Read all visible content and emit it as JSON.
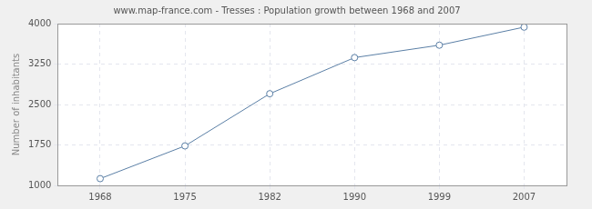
{
  "chart_data": {
    "type": "line",
    "title": "www.map-france.com - Tresses : Population growth between 1968 and 2007",
    "y_label": "Number of inhabitants",
    "categories": [
      "1968",
      "1975",
      "1982",
      "1990",
      "1999",
      "2007"
    ],
    "values": [
      1125,
      1732,
      2700,
      3370,
      3600,
      3935
    ],
    "color": "#5b7fa6",
    "marker": "circle",
    "ylim": [
      1000,
      4000
    ],
    "yticks": [
      1000,
      1750,
      2500,
      3250,
      4000
    ],
    "grid": true
  }
}
